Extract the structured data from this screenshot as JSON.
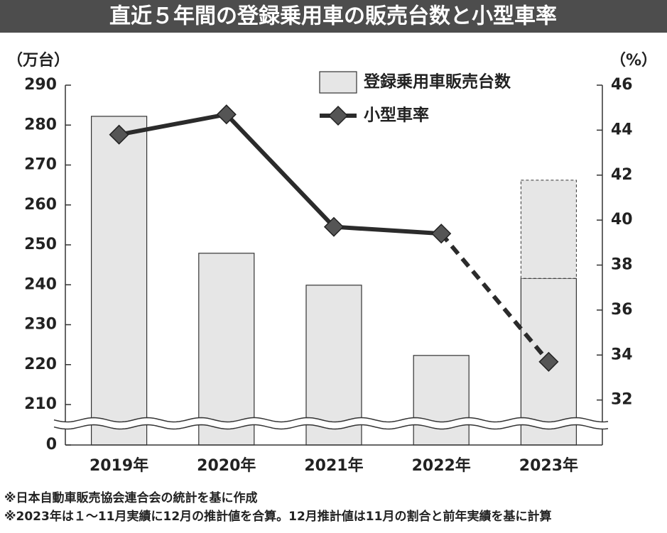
{
  "chart_data": {
    "type": "bar_line",
    "title": "直近５年間の登録乗用車の販売台数と小型車率",
    "y_label": "（万台）",
    "y2_label": "（%）",
    "categories": [
      "2019年",
      "2020年",
      "2021年",
      "2022年",
      "2023年"
    ],
    "series": [
      {
        "name": "登録乗用車販売台数",
        "type": "bar",
        "color": "#e6e6e6",
        "values": [
          282.2,
          247.9,
          239.9,
          222.3,
          241.6
        ]
      },
      {
        "type": "bar",
        "color": "#e6e6e6",
        "dashed": true,
        "values": [
          null,
          null,
          null,
          null,
          24.6
        ]
      },
      {
        "name": "小型車率",
        "type": "line",
        "axis": "y2",
        "color": "#2b2b2b",
        "marker_color": "#555555",
        "dashed_last": true,
        "values": [
          43.8,
          44.7,
          39.7,
          39.4,
          33.7
        ]
      }
    ],
    "ylim": [
      0,
      290
    ],
    "yticks": [
      0,
      210,
      220,
      230,
      240,
      250,
      260,
      270,
      280,
      290
    ],
    "y_break": true,
    "y2lim": [
      30,
      46
    ],
    "y2ticks": [
      32,
      34,
      36,
      38,
      40,
      42,
      44,
      46
    ],
    "notes": [
      "※日本自動車販売協会連合会の統計を基に作成",
      "※2023年は１～11月実績に12月の推計値を合算。12月推計値は11月の割合と前年実績を基に計算"
    ]
  }
}
